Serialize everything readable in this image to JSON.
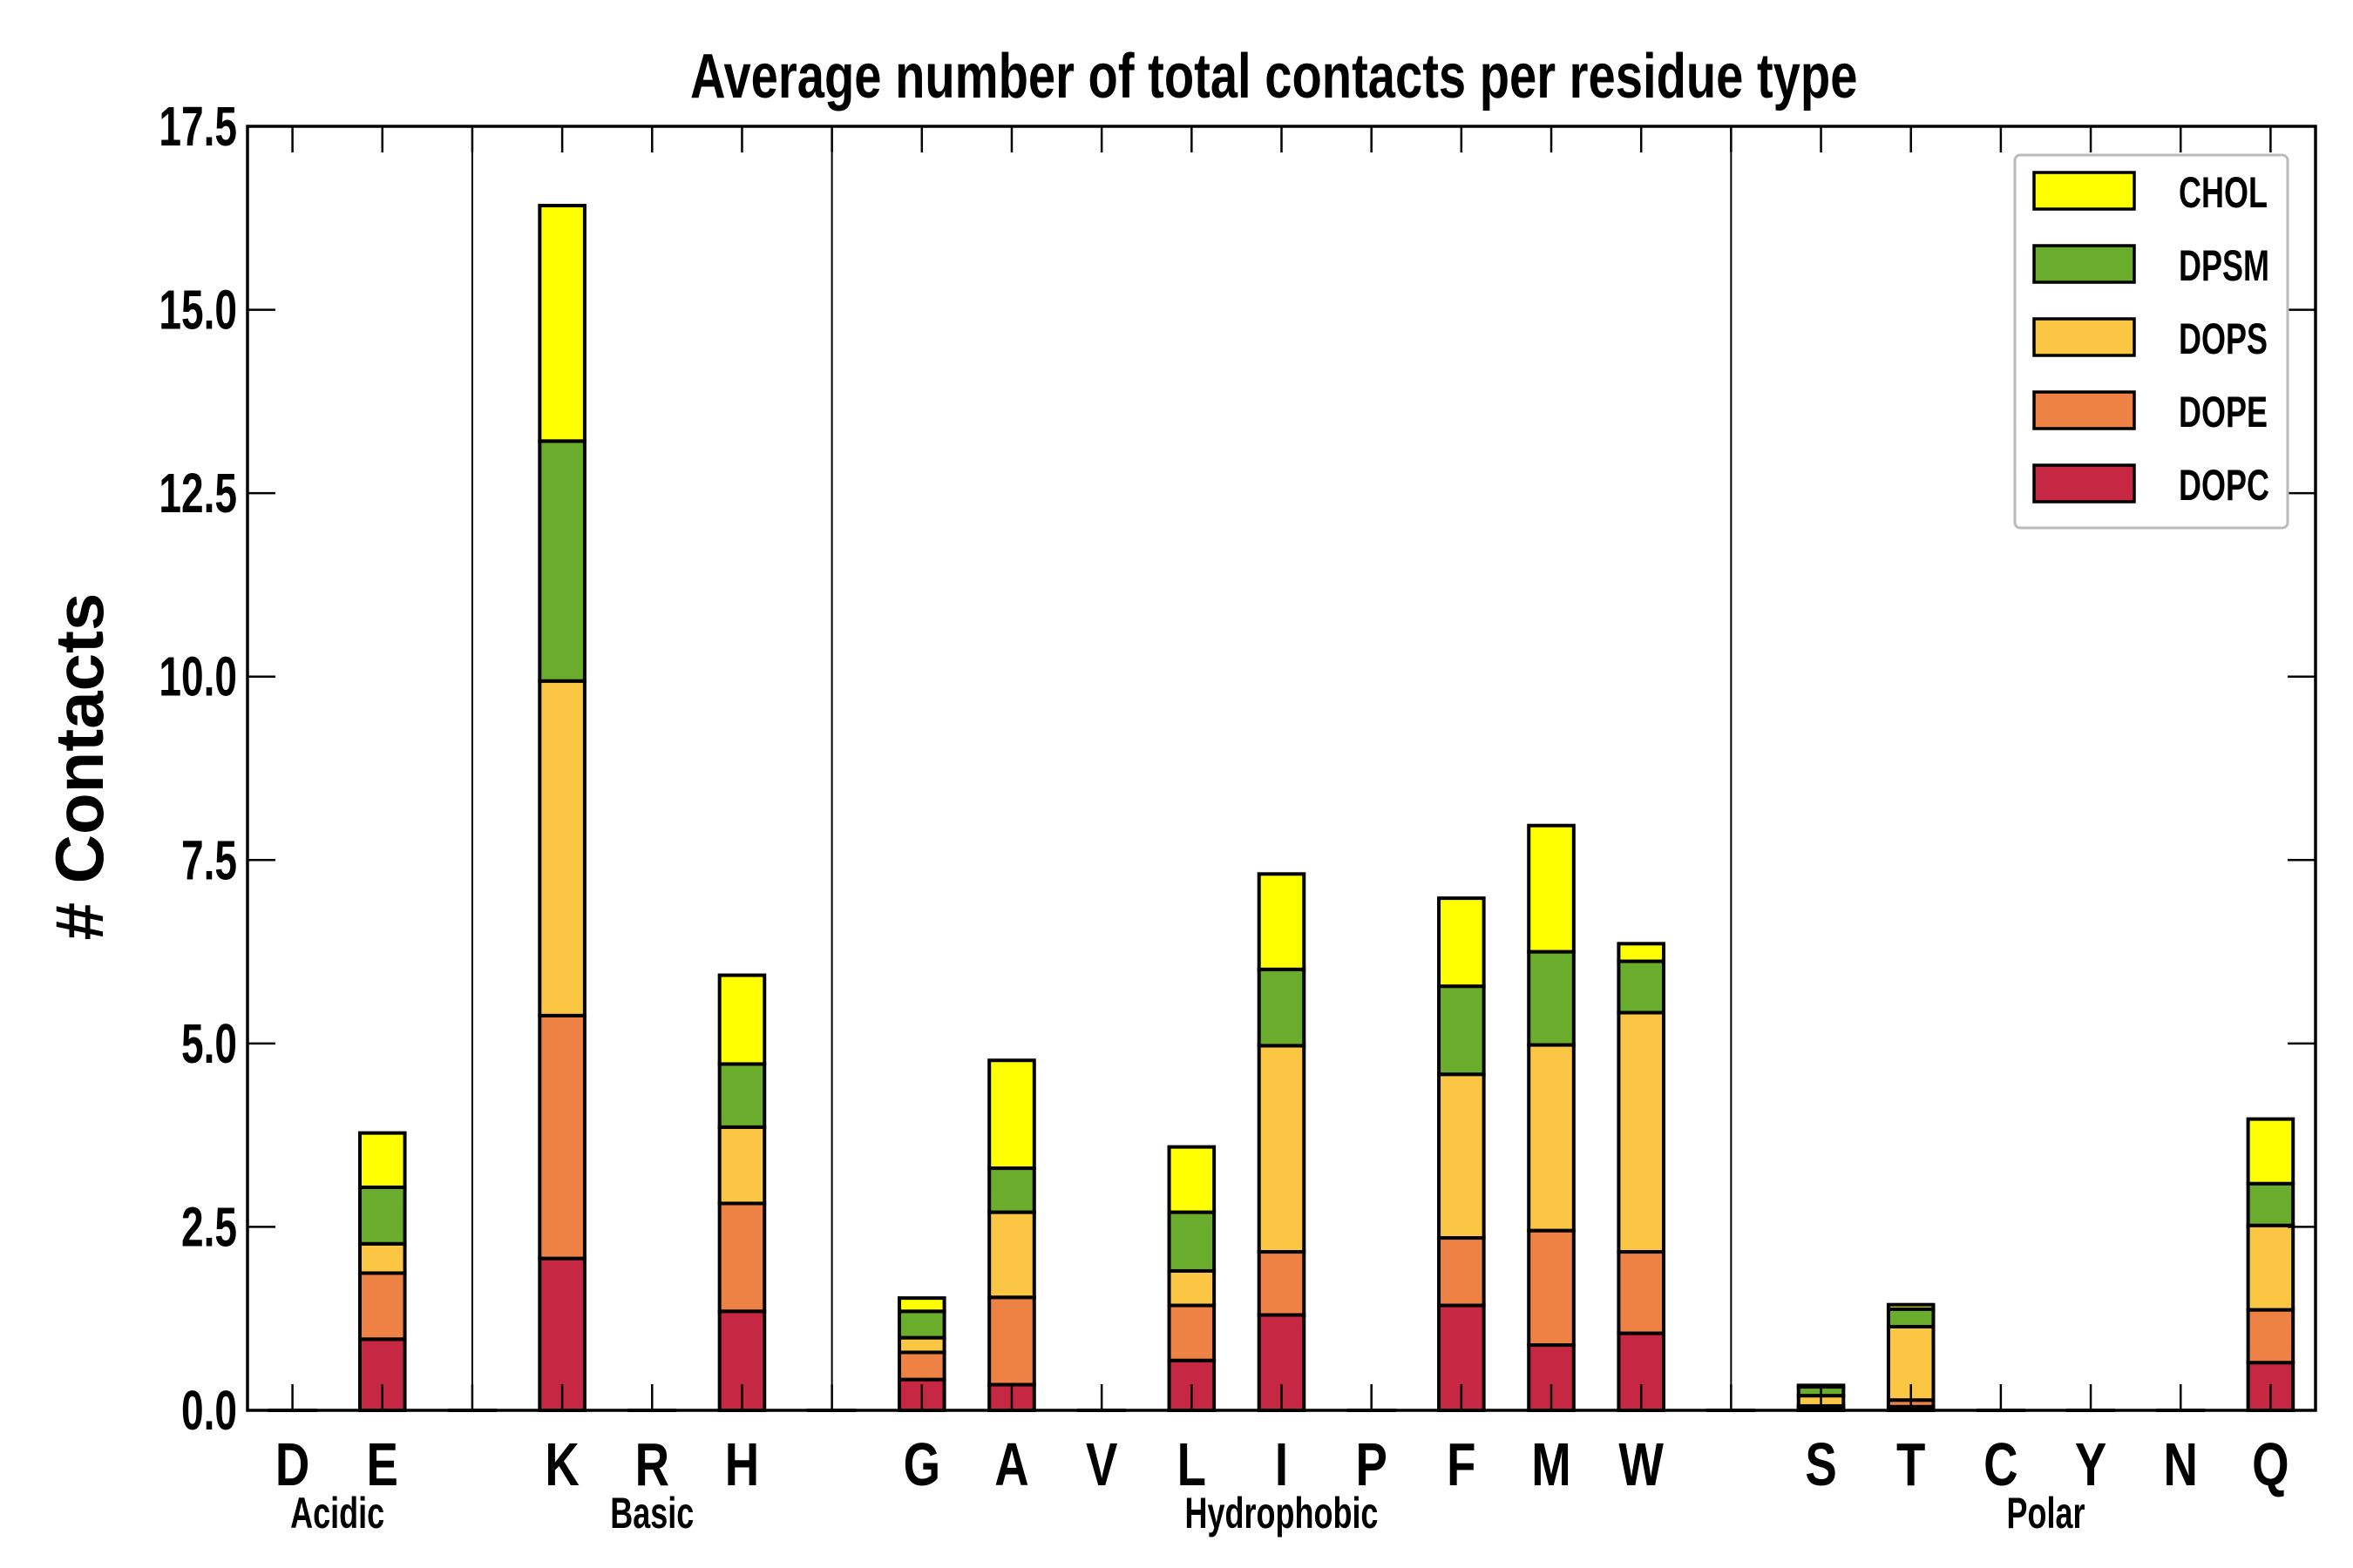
{
  "chart_data": {
    "type": "bar",
    "stacked": true,
    "title": "Average number of total contacts per residue type",
    "xlabel": "",
    "ylabel": "# Contacts",
    "ylim": [
      0,
      17.5
    ],
    "yticks": [
      "0.0",
      "2.5",
      "5.0",
      "7.5",
      "10.0",
      "12.5",
      "15.0",
      "17.5"
    ],
    "ytick_values": [
      0,
      2.5,
      5,
      7.5,
      10,
      12.5,
      15,
      17.5
    ],
    "categories": [
      "D",
      "E",
      "",
      "K",
      "R",
      "H",
      "",
      "G",
      "A",
      "V",
      "L",
      "I",
      "P",
      "F",
      "M",
      "W",
      "",
      "S",
      "T",
      "C",
      "Y",
      "N",
      "Q"
    ],
    "groups": [
      {
        "label": "Acidic",
        "members": [
          "D",
          "E"
        ]
      },
      {
        "label": "Basic",
        "members": [
          "K",
          "R",
          "H"
        ]
      },
      {
        "label": "Hydrophobic",
        "members": [
          "G",
          "A",
          "V",
          "L",
          "I",
          "P",
          "F",
          "M",
          "W"
        ]
      },
      {
        "label": "Polar",
        "members": [
          "S",
          "T",
          "C",
          "Y",
          "N",
          "Q"
        ]
      }
    ],
    "series": [
      {
        "name": "DOPC",
        "color": "#c62843",
        "values": [
          0,
          0.97,
          0,
          2.07,
          0,
          1.35,
          0,
          0.42,
          0.35,
          0,
          0.68,
          1.3,
          0,
          1.43,
          0.89,
          1.05,
          0,
          0.02,
          0.05,
          0,
          0,
          0,
          0.65
        ]
      },
      {
        "name": "DOPE",
        "color": "#ee8244",
        "values": [
          0,
          0.9,
          0,
          3.31,
          0,
          1.47,
          0,
          0.37,
          1.19,
          0,
          0.75,
          0.86,
          0,
          0.92,
          1.56,
          1.11,
          0,
          0.04,
          0.09,
          0,
          0,
          0,
          0.72
        ]
      },
      {
        "name": "DOPS",
        "color": "#fcc645",
        "values": [
          0,
          0.4,
          0,
          4.56,
          0,
          1.04,
          0,
          0.2,
          1.16,
          0,
          0.47,
          2.81,
          0,
          2.23,
          2.53,
          3.26,
          0,
          0.14,
          1.0,
          0,
          0,
          0,
          1.15
        ]
      },
      {
        "name": "DPSM",
        "color": "#6aac2c",
        "values": [
          0,
          0.77,
          0,
          3.27,
          0,
          0.86,
          0,
          0.36,
          0.6,
          0,
          0.8,
          1.04,
          0,
          1.2,
          1.27,
          0.7,
          0,
          0.12,
          0.24,
          0,
          0,
          0,
          0.57
        ]
      },
      {
        "name": "CHOL",
        "color": "#ffff00",
        "values": [
          0,
          0.74,
          0,
          3.21,
          0,
          1.21,
          0,
          0.18,
          1.47,
          0,
          0.89,
          1.3,
          0,
          1.2,
          1.72,
          0.24,
          0,
          0.02,
          0.06,
          0,
          0,
          0,
          0.88
        ]
      }
    ],
    "legend": {
      "placement": "top-right",
      "order": [
        "CHOL",
        "DPSM",
        "DOPS",
        "DOPE",
        "DOPC"
      ]
    },
    "grid": false
  }
}
